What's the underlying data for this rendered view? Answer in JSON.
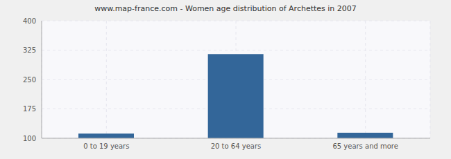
{
  "chart_data": {
    "type": "bar",
    "title": "www.map-france.com - Women age distribution of Archettes in 2007",
    "categories": [
      "0 to 19 years",
      "20 to 64 years",
      "65 years and more"
    ],
    "values": [
      112,
      315,
      114
    ],
    "color": "#336699",
    "ylim": [
      100,
      400
    ],
    "yticks": [
      100,
      175,
      250,
      325,
      400
    ],
    "grid": true
  }
}
